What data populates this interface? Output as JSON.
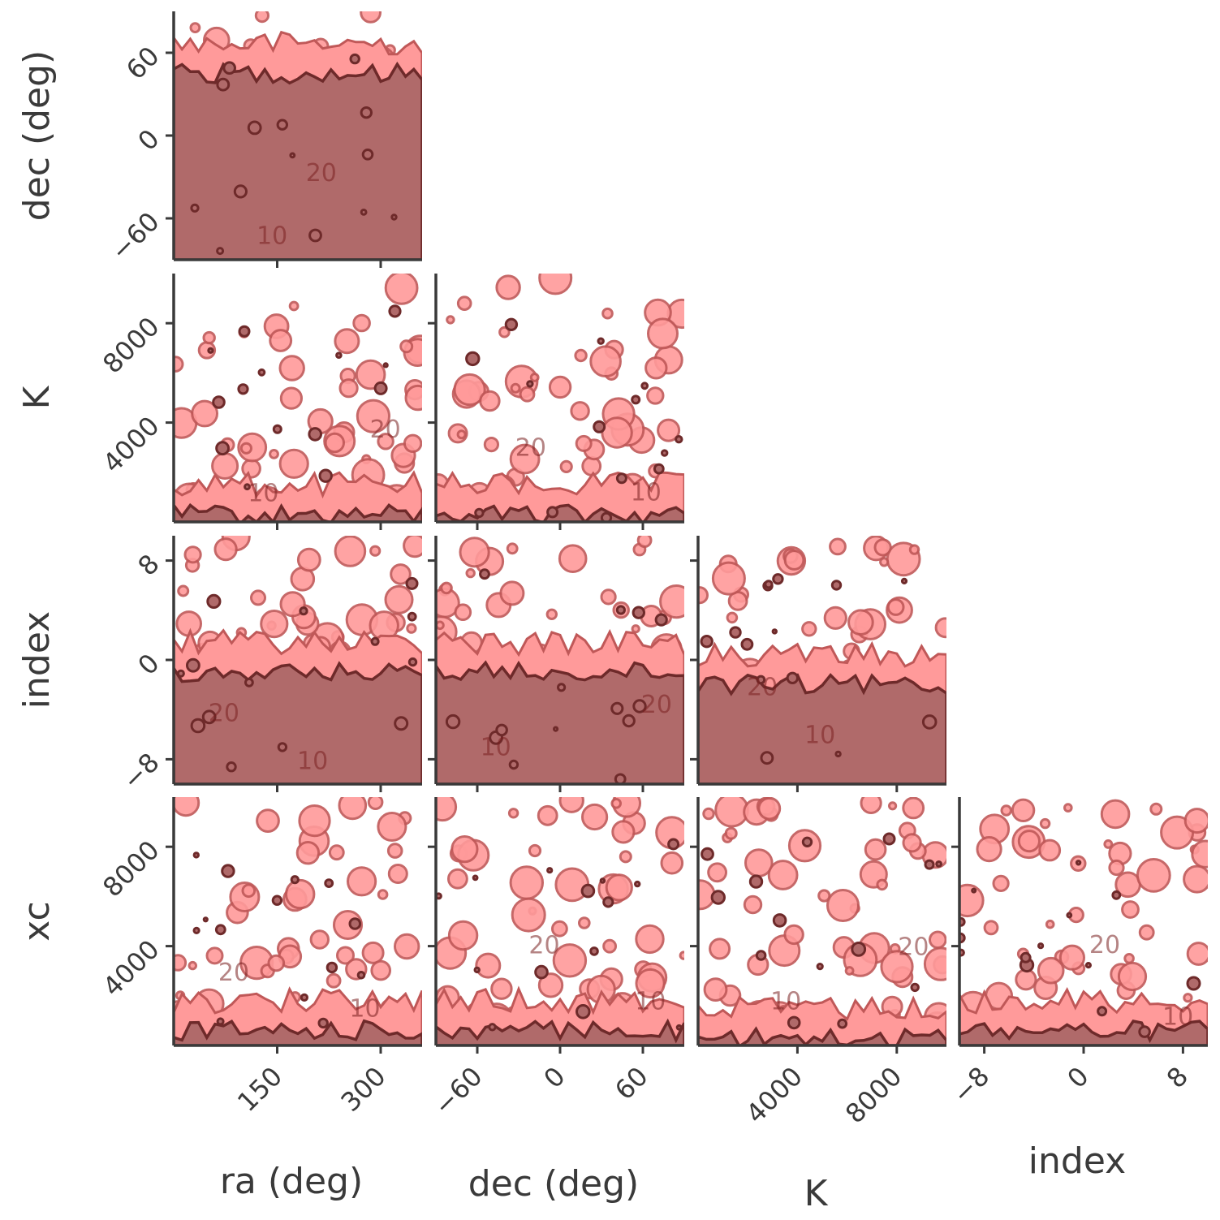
{
  "chart_data": {
    "type": "contour",
    "layout": "corner-plot",
    "variables": [
      {
        "key": "ra",
        "label": "ra (deg)",
        "lim": [
          0,
          360
        ],
        "ticks": [
          150,
          300
        ]
      },
      {
        "key": "dec",
        "label": "dec (deg)",
        "lim": [
          -90,
          90
        ],
        "ticks": [
          -60,
          0,
          60
        ]
      },
      {
        "key": "K",
        "label": "K",
        "lim": [
          0,
          10000
        ],
        "ticks": [
          4000,
          8000
        ]
      },
      {
        "key": "index",
        "label": "index",
        "lim": [
          -10,
          10
        ],
        "ticks": [
          -8,
          0,
          8
        ]
      },
      {
        "key": "xc",
        "label": "xc",
        "lim": [
          0,
          10000
        ],
        "ticks": [
          4000,
          8000
        ]
      }
    ],
    "contour_level_labels": [
      "10",
      "20"
    ],
    "colors": {
      "outer_fill": "#ff9a9a",
      "inner_fill": "#b06a6a",
      "outer_line": "#c05858",
      "inner_line": "#6e2a2a",
      "axis": "#3a3a3a"
    },
    "panels": [
      {
        "x": "ra",
        "y": "dec",
        "core_y_max": 45
      },
      {
        "x": "ra",
        "y": "K",
        "core_y_max": 300
      },
      {
        "x": "dec",
        "y": "K",
        "core_y_max": 300
      },
      {
        "x": "ra",
        "y": "index",
        "core_y_max": -1
      },
      {
        "x": "dec",
        "y": "index",
        "core_y_max": -1
      },
      {
        "x": "K",
        "y": "index",
        "core_y_max": -2
      },
      {
        "x": "ra",
        "y": "xc",
        "core_y_max": 600
      },
      {
        "x": "dec",
        "y": "xc",
        "core_y_max": 600
      },
      {
        "x": "K",
        "y": "xc",
        "core_y_max": 300
      },
      {
        "x": "index",
        "y": "xc",
        "core_y_max": 600
      }
    ]
  }
}
